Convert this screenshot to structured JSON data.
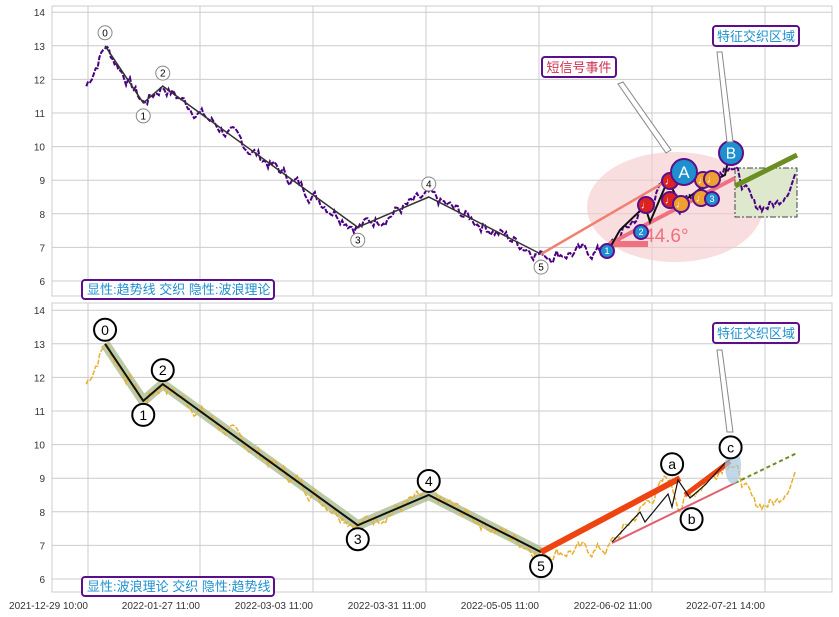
{
  "chart_data": [
    {
      "type": "line",
      "panel": "top",
      "ylim": [
        5.6,
        14.1
      ],
      "yticks": [
        6,
        7,
        8,
        9,
        10,
        11,
        12,
        13,
        14
      ],
      "price_anchors": [
        [
          4.4,
          11.8
        ],
        [
          6.8,
          13.0
        ],
        [
          11.7,
          11.3
        ],
        [
          14.2,
          11.8
        ],
        [
          39.2,
          7.6
        ],
        [
          48.3,
          8.5
        ],
        [
          62.7,
          6.8
        ],
        [
          71.2,
          6.9
        ],
        [
          79,
          9.0
        ],
        [
          80.5,
          8.2
        ],
        [
          86.9,
          9.6
        ],
        [
          90,
          8.2
        ],
        [
          93,
          8.3
        ],
        [
          95.3,
          9.2
        ]
      ],
      "waves": [
        {
          "label": "0",
          "t": 6.8,
          "p": 13.0
        },
        {
          "label": "1",
          "t": 11.7,
          "p": 11.3
        },
        {
          "label": "2",
          "t": 14.2,
          "p": 11.8
        },
        {
          "label": "3",
          "t": 39.2,
          "p": 7.6
        },
        {
          "label": "4",
          "t": 48.3,
          "p": 8.5
        },
        {
          "label": "5",
          "t": 62.7,
          "p": 6.8
        }
      ],
      "angle_label": "44.6°",
      "annotations": [
        "短信号事件",
        "特征交织区域"
      ],
      "legend": "显性:趋势线 交织 隐性:波浪理论"
    },
    {
      "type": "line",
      "panel": "bottom",
      "ylim": [
        5.6,
        14.1
      ],
      "yticks": [
        6,
        7,
        8,
        9,
        10,
        11,
        12,
        13,
        14
      ],
      "waves": [
        {
          "label": "0",
          "t": 6.8,
          "p": 13.0
        },
        {
          "label": "1",
          "t": 11.7,
          "p": 11.3
        },
        {
          "label": "2",
          "t": 14.2,
          "p": 11.8
        },
        {
          "label": "3",
          "t": 39.2,
          "p": 7.6
        },
        {
          "label": "4",
          "t": 48.3,
          "p": 8.5
        },
        {
          "label": "5",
          "t": 62.7,
          "p": 6.8
        },
        {
          "label": "a",
          "t": 79.5,
          "p": 9.0
        },
        {
          "label": "b",
          "t": 82,
          "p": 8.2
        },
        {
          "label": "c",
          "t": 87,
          "p": 9.5
        }
      ],
      "annotations": [
        "特征交织区域"
      ],
      "legend": "显性:波浪理论 交织 隐性:趋势线"
    }
  ],
  "xticks": [
    "2021-12-29 10:00",
    "2022-01-27 11:00",
    "2022-03-03 11:00",
    "2022-03-31 11:00",
    "2022-05-05 11:00",
    "2022-06-02 11:00",
    "2022-07-21 14:00"
  ],
  "colors": {
    "top_price": "#4b0082",
    "bottom_price": "#e8b030",
    "trend": "#f08070",
    "green": "#6b8e23",
    "orange": "#ee4411",
    "blue": "#1e90d0"
  }
}
